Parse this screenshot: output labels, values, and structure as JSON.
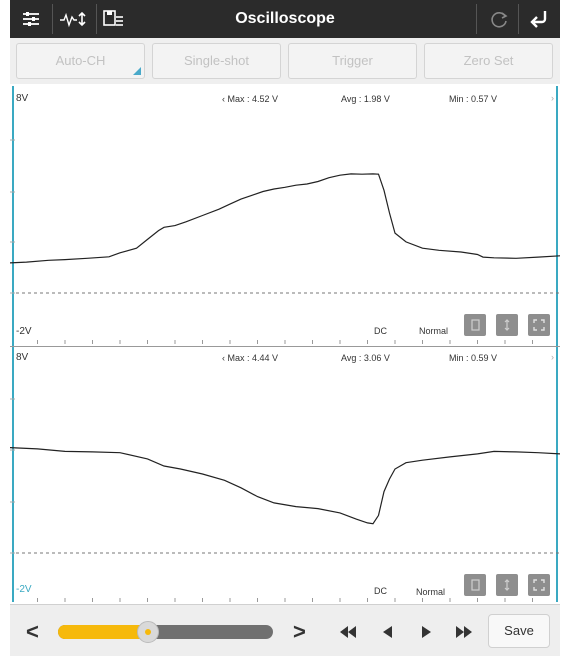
{
  "app": {
    "title": "Oscilloscope"
  },
  "toolbar": {
    "left_icons": [
      "settings-sliders-icon",
      "waveform-adjust-icon",
      "save-list-icon"
    ],
    "right_icons": [
      "refresh-icon",
      "back-icon"
    ]
  },
  "modes": [
    {
      "label": "Auto-CH"
    },
    {
      "label": "Single-shot"
    },
    {
      "label": "Trigger"
    },
    {
      "label": "Zero Set"
    }
  ],
  "channels": [
    {
      "top_label": "8V",
      "bottom_label": "-2V",
      "max": "Max : 4.52 V",
      "avg": "Avg : 1.98 V",
      "min": "Min : 0.57 V",
      "coupling": "DC",
      "mode": "Normal",
      "trace": [
        [
          0,
          1.22
        ],
        [
          3,
          1.25
        ],
        [
          7,
          1.32
        ],
        [
          10,
          1.35
        ],
        [
          14,
          1.4
        ],
        [
          18,
          1.46
        ],
        [
          20,
          1.62
        ],
        [
          23,
          1.8
        ],
        [
          25,
          2.15
        ],
        [
          27,
          2.5
        ],
        [
          28,
          2.63
        ],
        [
          30,
          2.7
        ],
        [
          32,
          2.85
        ],
        [
          35,
          3.1
        ],
        [
          38,
          3.35
        ],
        [
          40,
          3.55
        ],
        [
          42,
          3.75
        ],
        [
          44,
          3.9
        ],
        [
          46,
          4.05
        ],
        [
          48,
          4.15
        ],
        [
          50,
          4.22
        ],
        [
          52,
          4.3
        ],
        [
          54,
          4.35
        ],
        [
          56,
          4.45
        ],
        [
          58,
          4.6
        ],
        [
          60,
          4.7
        ],
        [
          62,
          4.75
        ],
        [
          64,
          4.74
        ],
        [
          66,
          4.75
        ],
        [
          67,
          4.74
        ],
        [
          68,
          4.1
        ],
        [
          69,
          3.2
        ],
        [
          70,
          2.4
        ],
        [
          72,
          2.05
        ],
        [
          75,
          1.8
        ],
        [
          78,
          1.72
        ],
        [
          82,
          1.65
        ],
        [
          85,
          1.55
        ],
        [
          86,
          1.45
        ],
        [
          88,
          1.42
        ],
        [
          92,
          1.4
        ],
        [
          96,
          1.45
        ],
        [
          100,
          1.5
        ]
      ]
    },
    {
      "top_label": "8V",
      "bottom_label": "-2V",
      "max": "Max : 4.44 V",
      "avg": "Avg : 3.06 V",
      "min": "Min : 0.59 V",
      "coupling": "DC",
      "mode": "Normal",
      "trace": [
        [
          0,
          4.15
        ],
        [
          5,
          4.1
        ],
        [
          10,
          4.0
        ],
        [
          15,
          3.98
        ],
        [
          20,
          3.95
        ],
        [
          25,
          3.7
        ],
        [
          28,
          3.42
        ],
        [
          31,
          3.3
        ],
        [
          35,
          3.1
        ],
        [
          39,
          2.85
        ],
        [
          42,
          2.55
        ],
        [
          45,
          2.2
        ],
        [
          48,
          1.95
        ],
        [
          52,
          1.8
        ],
        [
          56,
          1.72
        ],
        [
          60,
          1.55
        ],
        [
          63,
          1.3
        ],
        [
          65,
          1.15
        ],
        [
          66,
          1.12
        ],
        [
          67,
          1.45
        ],
        [
          68,
          2.4
        ],
        [
          69,
          2.9
        ],
        [
          70,
          3.3
        ],
        [
          72,
          3.55
        ],
        [
          75,
          3.65
        ],
        [
          80,
          3.78
        ],
        [
          85,
          3.9
        ],
        [
          88,
          4.0
        ],
        [
          92,
          3.98
        ],
        [
          96,
          3.95
        ],
        [
          100,
          3.9
        ]
      ]
    }
  ],
  "bottom": {
    "prev_label": "<",
    "next_label": ">",
    "slider_value": 0.42,
    "save_label": "Save"
  },
  "colors": {
    "accent": "#3aa9c2",
    "slider": "#f6b90b",
    "titlebar": "#2b2b2b"
  }
}
